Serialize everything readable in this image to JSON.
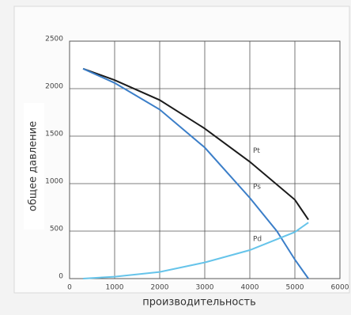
{
  "chart_data": {
    "type": "line",
    "xlabel": "производительность",
    "ylabel": "общее давление",
    "xlim": [
      0,
      6000
    ],
    "ylim": [
      0,
      2500
    ],
    "xticks": [
      0,
      1000,
      2000,
      3000,
      4000,
      5000,
      6000
    ],
    "yticks": [
      0,
      500,
      1000,
      1500,
      2000,
      2500
    ],
    "grid": true,
    "series": [
      {
        "name": "Pt",
        "color": "#1a1a1a",
        "x": [
          300,
          1000,
          2000,
          3000,
          4000,
          5000,
          5300
        ],
        "values": [
          2210,
          2090,
          1880,
          1580,
          1230,
          830,
          620
        ]
      },
      {
        "name": "Ps",
        "color": "#3b7ec8",
        "x": [
          300,
          1000,
          2000,
          3000,
          4000,
          4600,
          5000,
          5300
        ],
        "values": [
          2210,
          2060,
          1780,
          1380,
          850,
          500,
          200,
          0
        ]
      },
      {
        "name": "Pd",
        "color": "#66c4ea",
        "x": [
          300,
          1000,
          2000,
          3000,
          4000,
          5000,
          5300
        ],
        "values": [
          0,
          20,
          70,
          170,
          300,
          490,
          590
        ]
      }
    ]
  }
}
